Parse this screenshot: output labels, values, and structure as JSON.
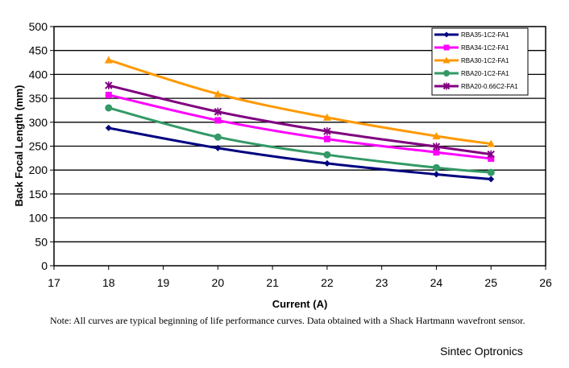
{
  "chart_data": {
    "type": "line",
    "title": "",
    "xlabel": "Current (A)",
    "ylabel": "Back Focal Length (mm)",
    "xlim": [
      17,
      26
    ],
    "ylim": [
      0,
      500
    ],
    "xticks": [
      17,
      18,
      19,
      20,
      21,
      22,
      23,
      24,
      25,
      26
    ],
    "yticks": [
      0,
      50,
      100,
      150,
      200,
      250,
      300,
      350,
      400,
      450,
      500
    ],
    "grid": "horizontal",
    "legend_position": "top-right",
    "series": [
      {
        "name": "RBA35-1C2-FA1",
        "color": "#000080",
        "marker": "diamond",
        "x": [
          18,
          20,
          22,
          24,
          25
        ],
        "y": [
          288,
          246,
          214,
          191,
          181
        ]
      },
      {
        "name": "RBA34-1C2-FA1",
        "color": "#FF00FF",
        "marker": "square",
        "x": [
          18,
          20,
          22,
          24,
          25
        ],
        "y": [
          357,
          304,
          265,
          237,
          224
        ]
      },
      {
        "name": "RBA30-1C2-FA1",
        "color": "#FF9900",
        "marker": "triangle",
        "x": [
          18,
          20,
          22,
          24,
          25
        ],
        "y": [
          430,
          359,
          310,
          271,
          255
        ]
      },
      {
        "name": "RBA20-1C2-FA1",
        "color": "#339966",
        "marker": "circle",
        "x": [
          18,
          20,
          22,
          24,
          25
        ],
        "y": [
          330,
          269,
          232,
          205,
          195
        ]
      },
      {
        "name": "RBA20-0.66C2-FA1",
        "color": "#800080",
        "marker": "x",
        "x": [
          18,
          20,
          22,
          24,
          25
        ],
        "y": [
          377,
          322,
          281,
          249,
          233
        ]
      }
    ]
  },
  "note": "Note: All curves are typical beginning of life performance curves.  Data obtained with a Shack Hartmann wavefront sensor.",
  "company": "Sintec Optronics"
}
